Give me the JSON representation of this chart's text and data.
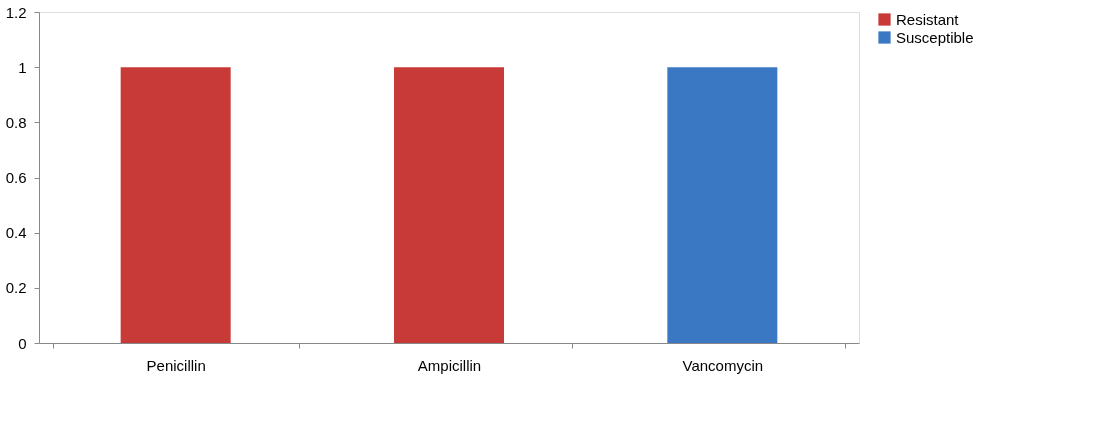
{
  "chart_data": {
    "type": "bar",
    "categories": [
      "Penicillin",
      "Ampicillin",
      "Vancomycin"
    ],
    "series": [
      {
        "name": "Resistant",
        "color": "#c83a37",
        "values": [
          1,
          1,
          null
        ]
      },
      {
        "name": "Susceptible",
        "color": "#3a78c4",
        "values": [
          null,
          null,
          1
        ]
      }
    ],
    "ylim": [
      0,
      1.2
    ],
    "yticks": [
      0,
      0.2,
      0.4,
      0.6,
      0.8,
      1,
      1.2
    ],
    "grid": false,
    "legend": "right"
  }
}
